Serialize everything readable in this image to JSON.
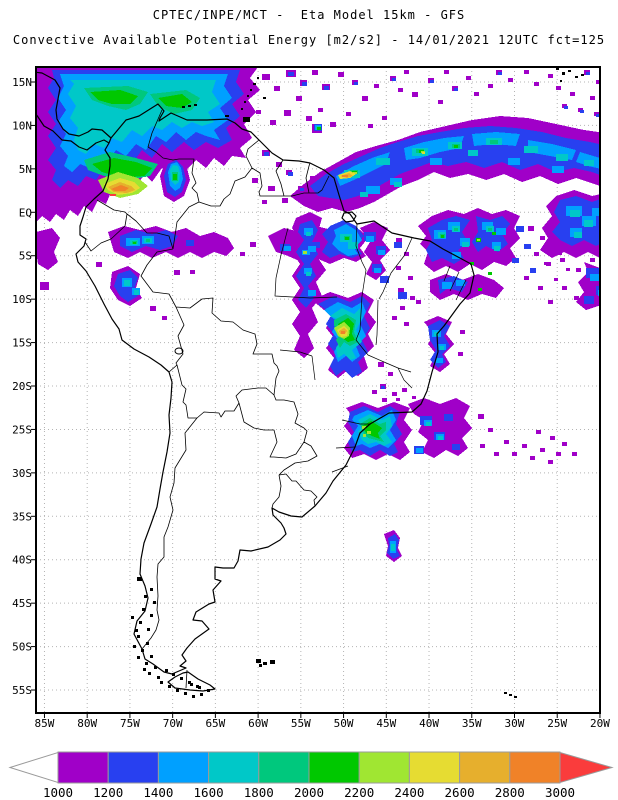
{
  "titles": {
    "line1": "CPTEC/INPE/MCT -  Eta Model 15km - GFS",
    "line2": "Convective Available Potential Energy [m2/s2] - 14/01/2021 12UTC fct=125"
  },
  "map": {
    "lat_labels": [
      "15N",
      "10N",
      "5N",
      "EQ",
      "5S",
      "10S",
      "15S",
      "20S",
      "25S",
      "30S",
      "35S",
      "40S",
      "45S",
      "50S",
      "55S"
    ],
    "lon_labels": [
      "85W",
      "80W",
      "75W",
      "70W",
      "65W",
      "60W",
      "55W",
      "50W",
      "45W",
      "40W",
      "35W",
      "30W",
      "25W",
      "20W"
    ]
  },
  "colorbar": {
    "values": [
      "1000",
      "1200",
      "1400",
      "1600",
      "1800",
      "2000",
      "2200",
      "2400",
      "2600",
      "2800",
      "3000"
    ],
    "colors": [
      "#a000c8",
      "#2840f0",
      "#00a0ff",
      "#00c8c8",
      "#00c87d",
      "#00c800",
      "#a0e632",
      "#e6dc32",
      "#e6af2d",
      "#f08228"
    ],
    "left_arrow_color": "#ffffff",
    "right_arrow_color": "#fa3c3c",
    "border_color": "#9a9a9a"
  },
  "chart_data": {
    "type": "heatmap",
    "title": "Convective Available Potential Energy [m2/s2]",
    "legend_values": [
      1000,
      1200,
      1400,
      1600,
      1800,
      2000,
      2200,
      2400,
      2600,
      2800,
      3000
    ],
    "legend_colors": [
      "#a000c8",
      "#2840f0",
      "#00a0ff",
      "#00c8c8",
      "#00c87d",
      "#00c800",
      "#a0e632",
      "#e6dc32",
      "#e6af2d",
      "#f08228"
    ],
    "legend_position": "bottom"
  }
}
